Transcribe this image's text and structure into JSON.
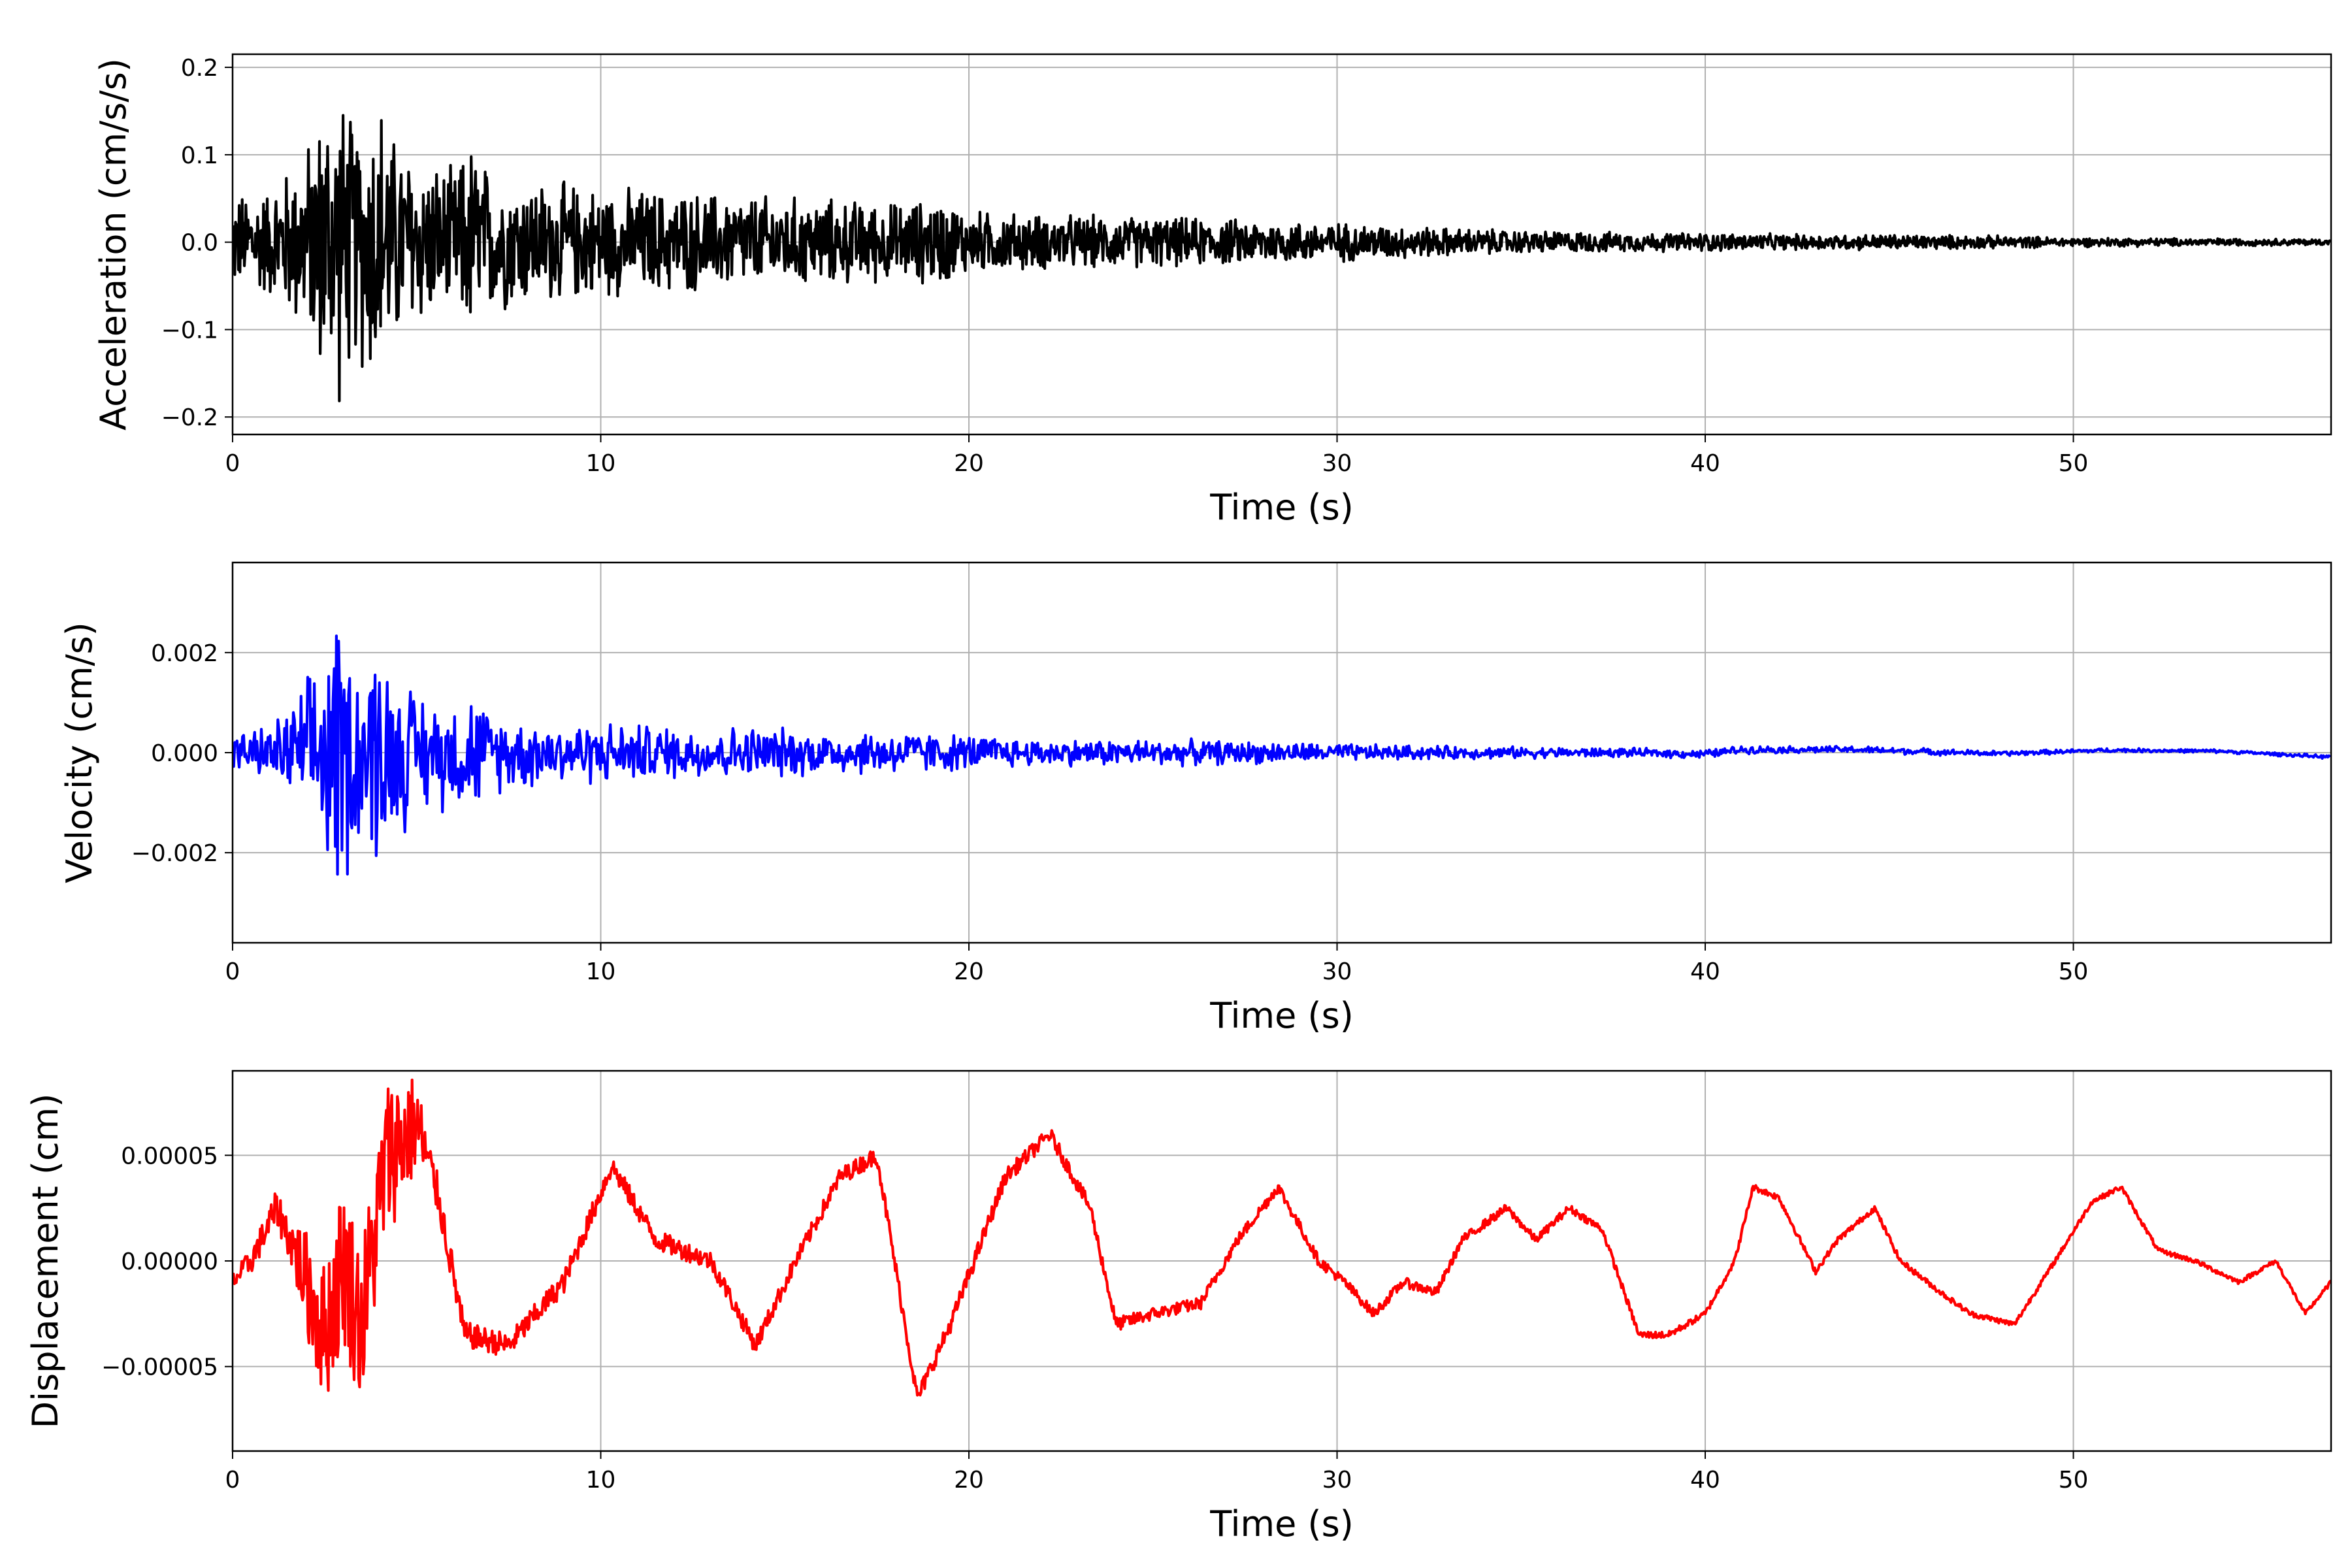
{
  "chart_data": [
    {
      "type": "line",
      "color": "#000000",
      "xlabel": "Time (s)",
      "ylabel": "Acceleration (cm/s/s)",
      "xlim": [
        0,
        57
      ],
      "ylim": [
        -0.22,
        0.215
      ],
      "grid": true,
      "xticks": [
        0,
        10,
        20,
        30,
        40,
        50
      ],
      "yticks": [
        -0.2,
        -0.1,
        0.0,
        0.1,
        0.2
      ],
      "ytick_labels": [
        "−0.2",
        "−0.1",
        "0.0",
        "0.1",
        "0.2"
      ],
      "series": [
        {
          "x": [
            0,
            1,
            2,
            2.5,
            2.9,
            3.3,
            4.0,
            4.3,
            5,
            6,
            6.5,
            7,
            8,
            9,
            10,
            12,
            14,
            16,
            18,
            19.3,
            20,
            22,
            25,
            28,
            30,
            33,
            35,
            38,
            40,
            42,
            45,
            48,
            50,
            53,
            57
          ],
          "envelope": [
            0.06,
            0.07,
            0.12,
            0.18,
            0.2,
            0.15,
            0.195,
            0.14,
            0.11,
            0.09,
            0.13,
            0.09,
            0.08,
            0.075,
            0.07,
            0.065,
            0.06,
            0.055,
            0.05,
            0.055,
            0.04,
            0.035,
            0.032,
            0.028,
            0.025,
            0.018,
            0.015,
            0.012,
            0.012,
            0.01,
            0.01,
            0.008,
            0.006,
            0.005,
            0.004
          ]
        }
      ]
    },
    {
      "type": "line",
      "color": "#0000ff",
      "xlabel": "Time (s)",
      "ylabel": "Velocity (cm/s)",
      "xlim": [
        0,
        57
      ],
      "ylim": [
        -0.0038,
        0.0038
      ],
      "grid": true,
      "xticks": [
        0,
        10,
        20,
        30,
        40,
        50
      ],
      "yticks": [
        -0.002,
        0.0,
        0.002
      ],
      "ytick_labels": [
        "−0.002",
        "0.000",
        "0.002"
      ],
      "series": [
        {
          "x": [
            0,
            1,
            2,
            2.5,
            2.9,
            3.3,
            4.0,
            4.3,
            5,
            6,
            6.5,
            7,
            8,
            9,
            10,
            12,
            14,
            16,
            18,
            20,
            22,
            25,
            28,
            30,
            33,
            36,
            38,
            40,
            42,
            45,
            48,
            50,
            53,
            57
          ],
          "envelope": [
            0.0004,
            0.0006,
            0.0015,
            0.0028,
            0.0034,
            0.0022,
            0.0026,
            0.002,
            0.0014,
            0.0012,
            0.0014,
            0.0009,
            0.0008,
            0.0007,
            0.0007,
            0.0006,
            0.0006,
            0.0005,
            0.0005,
            0.0004,
            0.0003,
            0.0003,
            0.00025,
            0.0002,
            0.00015,
            0.00012,
            0.0001,
            0.0001,
            8e-05,
            8e-05,
            6e-05,
            5e-05,
            4e-05,
            4e-05
          ],
          "trend_x": [
            0,
            20,
            30,
            38,
            40,
            41,
            44,
            48,
            51,
            54,
            57
          ],
          "trend_y": [
            0.0,
            0.0,
            0.0,
            0.0,
            -3e-05,
            6e-05,
            6e-05,
            -2e-05,
            5e-05,
            3e-05,
            -9e-05
          ]
        }
      ]
    },
    {
      "type": "line",
      "color": "#ff0000",
      "xlabel": "Time (s)",
      "ylabel": "Displacement (cm)",
      "xlim": [
        0,
        57
      ],
      "ylim": [
        -9e-05,
        9e-05
      ],
      "grid": true,
      "xticks": [
        0,
        10,
        20,
        30,
        40,
        50
      ],
      "yticks": [
        -5e-05,
        0.0,
        5e-05
      ],
      "ytick_labels": [
        "−0.00005",
        "0.00000",
        "0.00005"
      ],
      "series": [
        {
          "x": [
            0,
            0.5,
            1.2,
            1.8,
            2.5,
            3.0,
            3.5,
            4.2,
            5.0,
            5.6,
            6.3,
            7.5,
            9.0,
            10.3,
            11.5,
            13.0,
            14.2,
            15.3,
            16.5,
            17.5,
            18.6,
            19.5,
            21.0,
            22.2,
            23.3,
            24.0,
            25.0,
            26.3,
            27.3,
            28.4,
            29.5,
            30.2,
            31.0,
            31.8,
            32.7,
            33.4,
            34.6,
            35.4,
            36.3,
            37.2,
            38.2,
            39.0,
            40.0,
            40.8,
            41.3,
            42.0,
            43.0,
            43.6,
            44.6,
            45.3,
            46.4,
            47.2,
            48.4,
            49.5,
            50.5,
            51.3,
            52.3,
            53.3,
            54.5,
            55.5,
            56.3,
            57.0
          ],
          "y": [
            -1e-05,
            0.0,
            2.5e-05,
            0.0,
            -3.5e-05,
            0.0,
            -3e-05,
            5e-05,
            6.5e-05,
            3e-05,
            -3.5e-05,
            -4e-05,
            -1e-05,
            4.5e-05,
            1e-05,
            0.0,
            -4e-05,
            0.0,
            4e-05,
            5e-05,
            -6.5e-05,
            -3e-05,
            4e-05,
            6e-05,
            2.5e-05,
            -3e-05,
            -2.5e-05,
            -2e-05,
            1e-05,
            3.5e-05,
            0.0,
            -1e-05,
            -2.5e-05,
            -1e-05,
            -1.5e-05,
            1e-05,
            2.5e-05,
            1e-05,
            2.5e-05,
            1.5e-05,
            -3.5e-05,
            -3.5e-05,
            -2.5e-05,
            0.0,
            3.5e-05,
            3e-05,
            -5e-06,
            1e-05,
            2.5e-05,
            0.0,
            -1.5e-05,
            -2.5e-05,
            -3e-05,
            0.0,
            2.8e-05,
            3.5e-05,
            5e-06,
            0.0,
            -1e-05,
            0.0,
            -2.5e-05,
            -1e-05
          ],
          "noise_x": [
            0,
            1.5,
            2.2,
            3.0,
            4.5,
            5.5,
            6.5,
            10,
            15,
            20,
            25,
            30,
            40,
            57
          ],
          "noise_amp": [
            4e-06,
            1e-05,
            3e-05,
            4e-05,
            3.5e-05,
            1e-05,
            6e-06,
            5e-06,
            4e-06,
            4e-06,
            3e-06,
            2.5e-06,
            1.5e-06,
            1e-06
          ]
        }
      ]
    }
  ]
}
